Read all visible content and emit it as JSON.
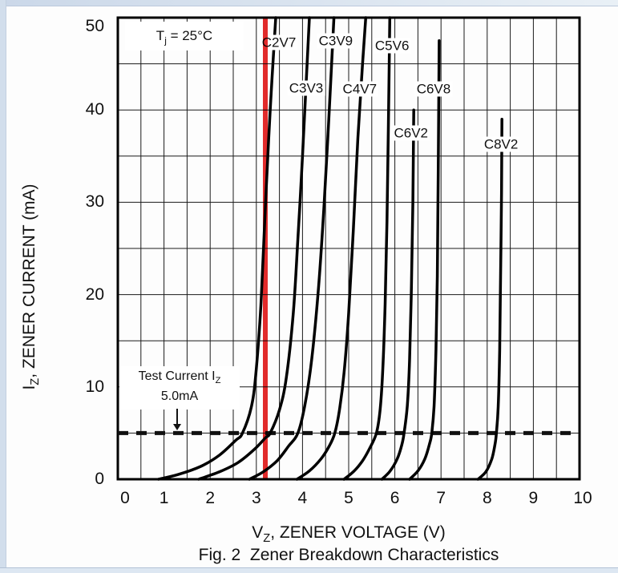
{
  "page": {
    "edge_strip_color": "#d2deec",
    "background": "#ffffff"
  },
  "chart_data": {
    "type": "line",
    "title": "Fig. 2  Zener Breakdown Characteristics",
    "xlabel": {
      "pre": "V",
      "sub": "Z",
      "post": ", ZENER VOLTAGE (V)"
    },
    "ylabel": {
      "pre": "I",
      "sub": "Z",
      "post": ", ZENER CURRENT (mA)"
    },
    "xlim": [
      0,
      10
    ],
    "ylim": [
      0,
      50
    ],
    "x_ticks": [
      0,
      1,
      2,
      3,
      4,
      5,
      6,
      7,
      8,
      9,
      10
    ],
    "y_ticks": [
      0,
      10,
      20,
      30,
      40,
      50
    ],
    "x_minor_step": 0.5,
    "y_minor_step": 5,
    "grid": "on",
    "grid_color": "#1a1a1a",
    "curve_color": "#000000",
    "condition_label": {
      "pre": "T",
      "sub": "j",
      "post": " = 25°C"
    },
    "test_current": {
      "label": {
        "pre": "Test Current I",
        "sub": "Z",
        "post": ""
      },
      "value_label": "5.0mA",
      "current_mA": 5
    },
    "highlight_line": {
      "x": 3.2,
      "color": "#e32b2b"
    },
    "series": [
      {
        "name": "C2V7",
        "label_pos": [
          3.49,
          47.3
        ],
        "points": [
          [
            0.88,
            0
          ],
          [
            1.3,
            0.5
          ],
          [
            1.8,
            1.4
          ],
          [
            2.2,
            2.6
          ],
          [
            2.55,
            4.2
          ],
          [
            2.7,
            5
          ],
          [
            2.9,
            8
          ],
          [
            3.0,
            12
          ],
          [
            3.1,
            19
          ],
          [
            3.2,
            30
          ],
          [
            3.3,
            40
          ],
          [
            3.42,
            50
          ]
        ]
      },
      {
        "name": "C3V3",
        "label_pos": [
          4.08,
          42.4
        ],
        "points": [
          [
            1.75,
            0
          ],
          [
            2.2,
            0.8
          ],
          [
            2.6,
            1.8
          ],
          [
            2.95,
            3.2
          ],
          [
            3.2,
            4.5
          ],
          [
            3.3,
            5
          ],
          [
            3.5,
            7.5
          ],
          [
            3.65,
            11
          ],
          [
            3.8,
            18
          ],
          [
            3.9,
            26
          ],
          [
            4.0,
            35
          ],
          [
            4.08,
            43
          ],
          [
            4.15,
            50
          ]
        ]
      },
      {
        "name": "C3V9",
        "label_pos": [
          4.72,
          47.5
        ],
        "points": [
          [
            2.85,
            0
          ],
          [
            3.15,
            0.8
          ],
          [
            3.45,
            2
          ],
          [
            3.7,
            3.6
          ],
          [
            3.9,
            5
          ],
          [
            4.05,
            8
          ],
          [
            4.2,
            13
          ],
          [
            4.35,
            21
          ],
          [
            4.47,
            30
          ],
          [
            4.58,
            40
          ],
          [
            4.68,
            50
          ]
        ]
      },
      {
        "name": "C4V7",
        "label_pos": [
          5.24,
          42.3
        ],
        "points": [
          [
            3.88,
            0
          ],
          [
            4.15,
            0.9
          ],
          [
            4.4,
            2.2
          ],
          [
            4.58,
            3.6
          ],
          [
            4.7,
            5
          ],
          [
            4.8,
            7.5
          ],
          [
            4.9,
            11.5
          ],
          [
            5.0,
            18
          ],
          [
            5.1,
            27
          ],
          [
            5.2,
            37
          ],
          [
            5.3,
            45
          ],
          [
            5.37,
            50
          ]
        ]
      },
      {
        "name": "C5V6",
        "label_pos": [
          5.94,
          47.0
        ],
        "points": [
          [
            4.9,
            0
          ],
          [
            5.12,
            0.9
          ],
          [
            5.3,
            2
          ],
          [
            5.45,
            3.3
          ],
          [
            5.6,
            5
          ],
          [
            5.68,
            7.5
          ],
          [
            5.74,
            12
          ],
          [
            5.79,
            19
          ],
          [
            5.83,
            28
          ],
          [
            5.86,
            38
          ],
          [
            5.89,
            50
          ]
        ]
      },
      {
        "name": "C6V2",
        "label_pos": [
          6.35,
          37.5
        ],
        "points": [
          [
            5.72,
            0
          ],
          [
            5.9,
            0.9
          ],
          [
            6.05,
            2.2
          ],
          [
            6.15,
            3.7
          ],
          [
            6.2,
            5
          ],
          [
            6.27,
            8
          ],
          [
            6.32,
            13
          ],
          [
            6.36,
            21
          ],
          [
            6.39,
            30
          ],
          [
            6.41,
            40
          ]
        ]
      },
      {
        "name": "C6V8",
        "label_pos": [
          6.84,
          42.3
        ],
        "points": [
          [
            6.32,
            0
          ],
          [
            6.5,
            0.9
          ],
          [
            6.65,
            2.2
          ],
          [
            6.75,
            3.8
          ],
          [
            6.8,
            5
          ],
          [
            6.85,
            8
          ],
          [
            6.89,
            14
          ],
          [
            6.92,
            22
          ],
          [
            6.94,
            33
          ],
          [
            6.96,
            47.5
          ]
        ]
      },
      {
        "name": "C8V2",
        "label_pos": [
          8.3,
          36.3
        ],
        "points": [
          [
            7.8,
            0
          ],
          [
            7.97,
            0.8
          ],
          [
            8.1,
            2.2
          ],
          [
            8.17,
            3.8
          ],
          [
            8.2,
            5
          ],
          [
            8.24,
            8
          ],
          [
            8.27,
            14
          ],
          [
            8.29,
            22
          ],
          [
            8.31,
            31
          ],
          [
            8.32,
            39
          ]
        ]
      }
    ]
  }
}
